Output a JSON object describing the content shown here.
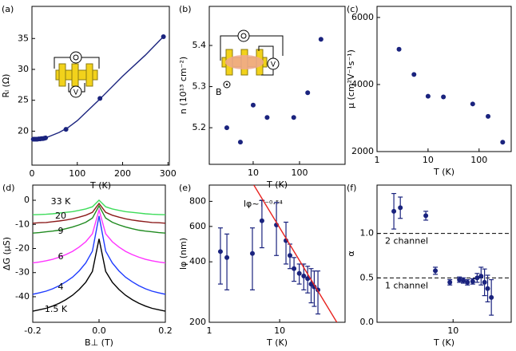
{
  "chart_data": [
    {
      "type": "line",
      "panel_label": "(a)",
      "x_label": "T (K)",
      "y_label": "Rₗ (Ω)",
      "xlim": [
        0,
        303
      ],
      "ylim": [
        14.5,
        40.2
      ],
      "xticks": [
        0,
        100,
        200,
        300
      ],
      "yticks": [
        20,
        25,
        30,
        35
      ],
      "annotations": [
        "V"
      ],
      "series": [
        {
          "style": "line",
          "color": "#1a237e",
          "x": [
            3,
            10,
            20,
            30,
            40,
            60,
            80,
            100,
            150,
            200,
            250,
            290
          ],
          "values": [
            18.7,
            18.7,
            18.75,
            18.9,
            19.2,
            19.8,
            20.6,
            21.7,
            25.2,
            28.9,
            32.3,
            35.3
          ]
        },
        {
          "style": "markers",
          "color": "#1a237e",
          "x": [
            3,
            6,
            9,
            12,
            15,
            18,
            21,
            24,
            27,
            30,
            75,
            150,
            290
          ],
          "values": [
            18.7,
            18.7,
            18.7,
            18.7,
            18.75,
            18.75,
            18.8,
            18.8,
            18.85,
            18.9,
            20.3,
            25.3,
            35.3
          ]
        }
      ]
    },
    {
      "type": "scatter",
      "panel_label": "(b)",
      "x_label": "T (K)",
      "y_label": "n (10¹³ cm⁻²)",
      "xscale": "log",
      "xlim": [
        1.13,
        960
      ],
      "ylim": [
        5.111,
        5.495
      ],
      "xticks": [
        10,
        100
      ],
      "yticks": [
        5.2,
        5.3,
        5.4
      ],
      "annotations": [
        "V",
        "B"
      ],
      "series": [
        {
          "style": "markers",
          "color": "#1a237e",
          "x": [
            2.7,
            5.3,
            10,
            20,
            75,
            150,
            290
          ],
          "values": [
            5.2,
            5.165,
            5.255,
            5.225,
            5.225,
            5.285,
            5.415
          ]
        }
      ]
    },
    {
      "type": "scatter",
      "panel_label": "(c)",
      "x_label": "T (K)",
      "y_label": "μ (cm²V⁻¹s⁻¹)",
      "xscale": "log",
      "xlim": [
        1,
        426
      ],
      "ylim": [
        2000,
        6330
      ],
      "xticks": [
        1,
        10,
        100
      ],
      "yticks": [
        2000,
        4000,
        6000
      ],
      "series": [
        {
          "style": "markers",
          "color": "#1a237e",
          "x": [
            2.7,
            5.3,
            10,
            20,
            75,
            150,
            290
          ],
          "values": [
            5050,
            4300,
            3650,
            3630,
            3420,
            3050,
            2280
          ]
        }
      ]
    },
    {
      "type": "line",
      "panel_label": "(d)",
      "x_label": "B⊥ (T)",
      "y_label": "ΔG (μS)",
      "xlim": [
        -0.2,
        0.2
      ],
      "ylim": [
        -50.6,
        6.3
      ],
      "xticks": [
        -0.2,
        {
          "value": 0,
          "label": "0.0"
        },
        0.2
      ],
      "yticks": [
        -40,
        -30,
        -20,
        -10,
        0
      ],
      "x": [
        -0.2,
        -0.18,
        -0.16,
        -0.14,
        -0.12,
        -0.1,
        -0.08,
        -0.06,
        -0.04,
        -0.02,
        0,
        0.02,
        0.04,
        0.06,
        0.08,
        0.1,
        0.12,
        0.14,
        0.16,
        0.18,
        0.2
      ],
      "series": [
        {
          "name": "33 K",
          "color": "#3ddc5a",
          "values": [
            -6,
            -5.9,
            -5.8,
            -5.6,
            -5.3,
            -5.0,
            -4.7,
            -4.2,
            -3.6,
            -2.7,
            0,
            -2.7,
            -3.6,
            -4.2,
            -4.7,
            -5.0,
            -5.3,
            -5.6,
            -5.8,
            -5.9,
            -6
          ]
        },
        {
          "name": "20",
          "color": "#8b1a1a",
          "values": [
            -9.5,
            -9.3,
            -9.2,
            -8.9,
            -8.6,
            -8.2,
            -7.7,
            -7.0,
            -6.2,
            -5.0,
            -1.3,
            -5.0,
            -6.2,
            -7.0,
            -7.7,
            -8.2,
            -8.6,
            -8.9,
            -9.2,
            -9.3,
            -9.5
          ]
        },
        {
          "name": "9",
          "color": "#1f8a1f",
          "values": [
            -13.6,
            -13.4,
            -13.1,
            -12.8,
            -12.4,
            -11.8,
            -11.1,
            -10.2,
            -9.1,
            -7.4,
            -2.3,
            -7.4,
            -9.1,
            -10.2,
            -11.1,
            -11.8,
            -12.4,
            -12.8,
            -13.1,
            -13.4,
            -13.6
          ]
        },
        {
          "name": "6",
          "color": "#ff33ff",
          "values": [
            -26,
            -25.6,
            -25.1,
            -24.5,
            -23.6,
            -22.5,
            -21.2,
            -19.4,
            -17.2,
            -13.9,
            -4,
            -13.9,
            -17.2,
            -19.4,
            -21.2,
            -22.5,
            -23.6,
            -24.5,
            -25.1,
            -25.6,
            -26
          ]
        },
        {
          "name": "4",
          "color": "#1f3cff",
          "values": [
            -39,
            -38.4,
            -37.7,
            -36.7,
            -35.4,
            -33.8,
            -31.9,
            -29.3,
            -26,
            -21.1,
            -6.5,
            -21.1,
            -26,
            -29.3,
            -31.9,
            -33.8,
            -35.4,
            -36.7,
            -37.7,
            -38.4,
            -39
          ]
        },
        {
          "name": "1.5 K",
          "color": "#000000",
          "values": [
            -46,
            -45.4,
            -44.8,
            -43.9,
            -42.7,
            -41.2,
            -39.4,
            -37,
            -34,
            -29.5,
            -16,
            -29.5,
            -34,
            -37,
            -39.4,
            -41.2,
            -42.7,
            -43.9,
            -44.8,
            -45.4,
            -46
          ]
        }
      ]
    },
    {
      "type": "errorbar",
      "panel_label": "(e)",
      "x_label": "T (K)",
      "y_label": "lφ (nm)",
      "xscale": "log",
      "yscale": "log",
      "xlim": [
        1,
        85
      ],
      "ylim": [
        200,
        964
      ],
      "xticks": [
        1,
        10
      ],
      "yticks": [
        200,
        400,
        600,
        800
      ],
      "annotations": [
        "lφ~T⁻⁰·⁵⁴"
      ],
      "series": [
        {
          "style": "errorbar",
          "color": "#1a237e",
          "x": [
            1.44,
            1.78,
            4.1,
            5.6,
            9,
            12.3,
            14,
            16,
            19,
            22,
            25,
            28,
            31,
            35
          ],
          "values": [
            450,
            420,
            440,
            640,
            610,
            510,
            430,
            370,
            350,
            340,
            330,
            310,
            300,
            290
          ],
          "errors": [
            140,
            130,
            150,
            170,
            180,
            120,
            60,
            50,
            40,
            50,
            50,
            60,
            60,
            70
          ]
        },
        {
          "style": "line",
          "color": "#e8231f",
          "x": [
            4.3,
            65
          ],
          "values": [
            964,
            200
          ]
        }
      ]
    },
    {
      "type": "errorbar",
      "panel_label": "(f)",
      "x_label": "T (K)",
      "y_label": "α",
      "xscale": "log",
      "xlim": [
        0.83,
        67
      ],
      "ylim": [
        0,
        1.545
      ],
      "xticks": [
        10
      ],
      "yticks": [
        {
          "value": 0,
          "label": "0.0"
        },
        0.5,
        {
          "value": 1,
          "label": "1.0"
        }
      ],
      "reference_lines": [
        {
          "value": 1,
          "label": "2 channel"
        },
        {
          "value": 0.5,
          "label": "1 channel"
        }
      ],
      "series": [
        {
          "style": "errorbar",
          "color": "#1a237e",
          "x": [
            1.44,
            1.78,
            4.1,
            5.6,
            9,
            12.3,
            14,
            16,
            19,
            22,
            25,
            28,
            31,
            35
          ],
          "values": [
            1.25,
            1.29,
            1.2,
            0.58,
            0.45,
            0.48,
            0.47,
            0.45,
            0.46,
            0.5,
            0.52,
            0.45,
            0.38,
            0.28
          ],
          "errors": [
            0.2,
            0.12,
            0.05,
            0.04,
            0.03,
            0.03,
            0.03,
            0.03,
            0.03,
            0.05,
            0.1,
            0.15,
            0.15,
            0.2
          ]
        }
      ]
    }
  ]
}
